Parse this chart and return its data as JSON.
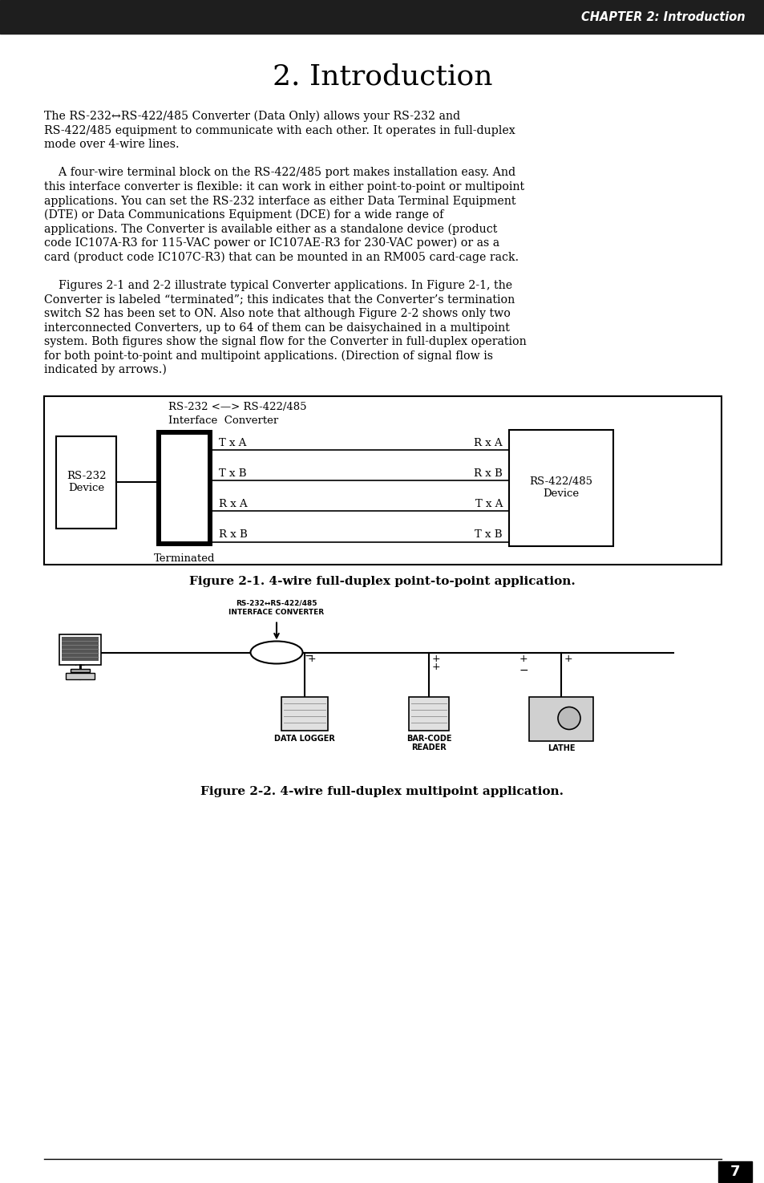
{
  "page_bg": "#ffffff",
  "header_bg": "#1e1e1e",
  "header_text": "CHAPTER 2: Introduction",
  "header_text_color": "#ffffff",
  "chapter_title": "2. Introduction",
  "para1_line1": "The RS-232↔RS-422/485 Converter (Data Only) allows your RS-232 and",
  "para1_line2": "RS-422/485 equipment to communicate with each other. It operates in full-duplex",
  "para1_line3": "mode over 4-wire lines.",
  "para2_line1": "    A four-wire terminal block on the RS-422/485 port makes installation easy. And",
  "para2_line2": "this interface converter is flexible: it can work in either point-to-point or multipoint",
  "para2_line3": "applications. You can set the RS-232 interface as either Data Terminal Equipment",
  "para2_line4": "(DTE) or Data Communications Equipment (DCE) for a wide range of",
  "para2_line5": "applications. The Converter is available either as a standalone device (product",
  "para2_line6": "code IC107A-R3 for 115-VAC power or IC107AE-R3 for 230-VAC power) or as a",
  "para2_line7": "card (product code IC107C-R3) that can be mounted in an RM005 card-cage rack.",
  "para3_line1": "    Figures 2-1 and 2-2 illustrate typical Converter applications. In Figure 2-1, the",
  "para3_line2": "Converter is labeled “terminated”; this indicates that the Converter’s termination",
  "para3_line3": "switch S2 has been set to ON. Also note that although Figure 2-2 shows only two",
  "para3_line4": "interconnected Converters, up to 64 of them can be daisychained in a multipoint",
  "para3_line5": "system. Both figures show the signal flow for the Converter in full-duplex operation",
  "para3_line6": "for both point-to-point and multipoint applications. (Direction of signal flow is",
  "para3_line7": "indicated by arrows.)",
  "fig1_caption": "Figure 2-1. 4-wire full-duplex point-to-point application.",
  "fig2_caption": "Figure 2-2. 4-wire full-duplex multipoint application.",
  "footer_number": "7"
}
